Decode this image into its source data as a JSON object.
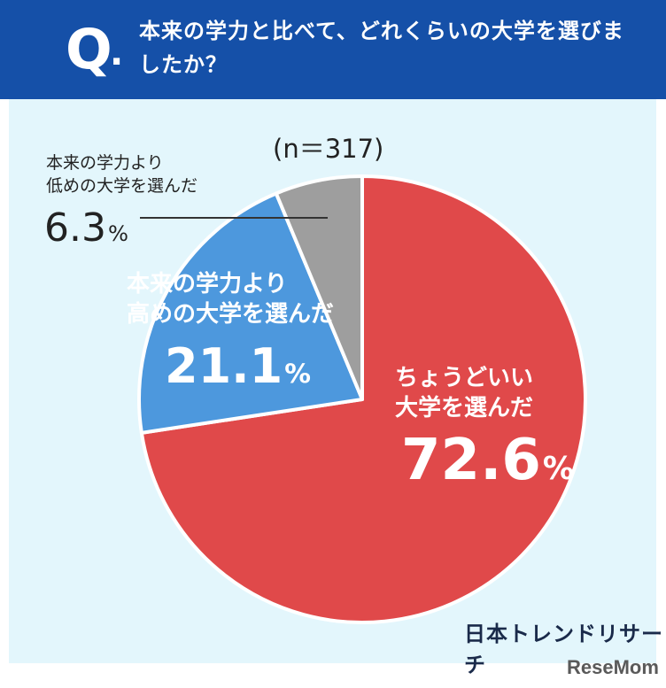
{
  "header": {
    "q_letter": "Q",
    "q_dot": ".",
    "question": "本来の学力と比べて、どれくらいの大学を選びましたか？"
  },
  "chart_data": {
    "type": "pie",
    "title": "本来の学力と比べて、どれくらいの大学を選びましたか？",
    "sample_size": "(n＝317)",
    "slices": [
      {
        "name": "ちょうどいい大学を選んだ",
        "value": 72.6,
        "color": "#e0494a"
      },
      {
        "name": "本来の学力より高めの大学を選んだ",
        "value": 21.1,
        "color": "#4d98dd"
      },
      {
        "name": "本来の学力より低めの大学を選んだ",
        "value": 6.3,
        "color": "#9e9e9e"
      }
    ],
    "labels": {
      "good_line1": "ちょうどいい",
      "good_line2": "大学を選んだ",
      "good_value": "72.6",
      "high_line1": "本来の学力より",
      "high_line2": "高めの大学を選んだ",
      "high_value": "21.1",
      "low_line1": "本来の学力より",
      "low_line2": "低めの大学を選んだ",
      "low_value": "6.3",
      "unit": "%"
    },
    "legend": "none",
    "grid": false
  },
  "footer": {
    "brand": "日本トレンドリサーチ",
    "watermark": "ReseMom"
  }
}
